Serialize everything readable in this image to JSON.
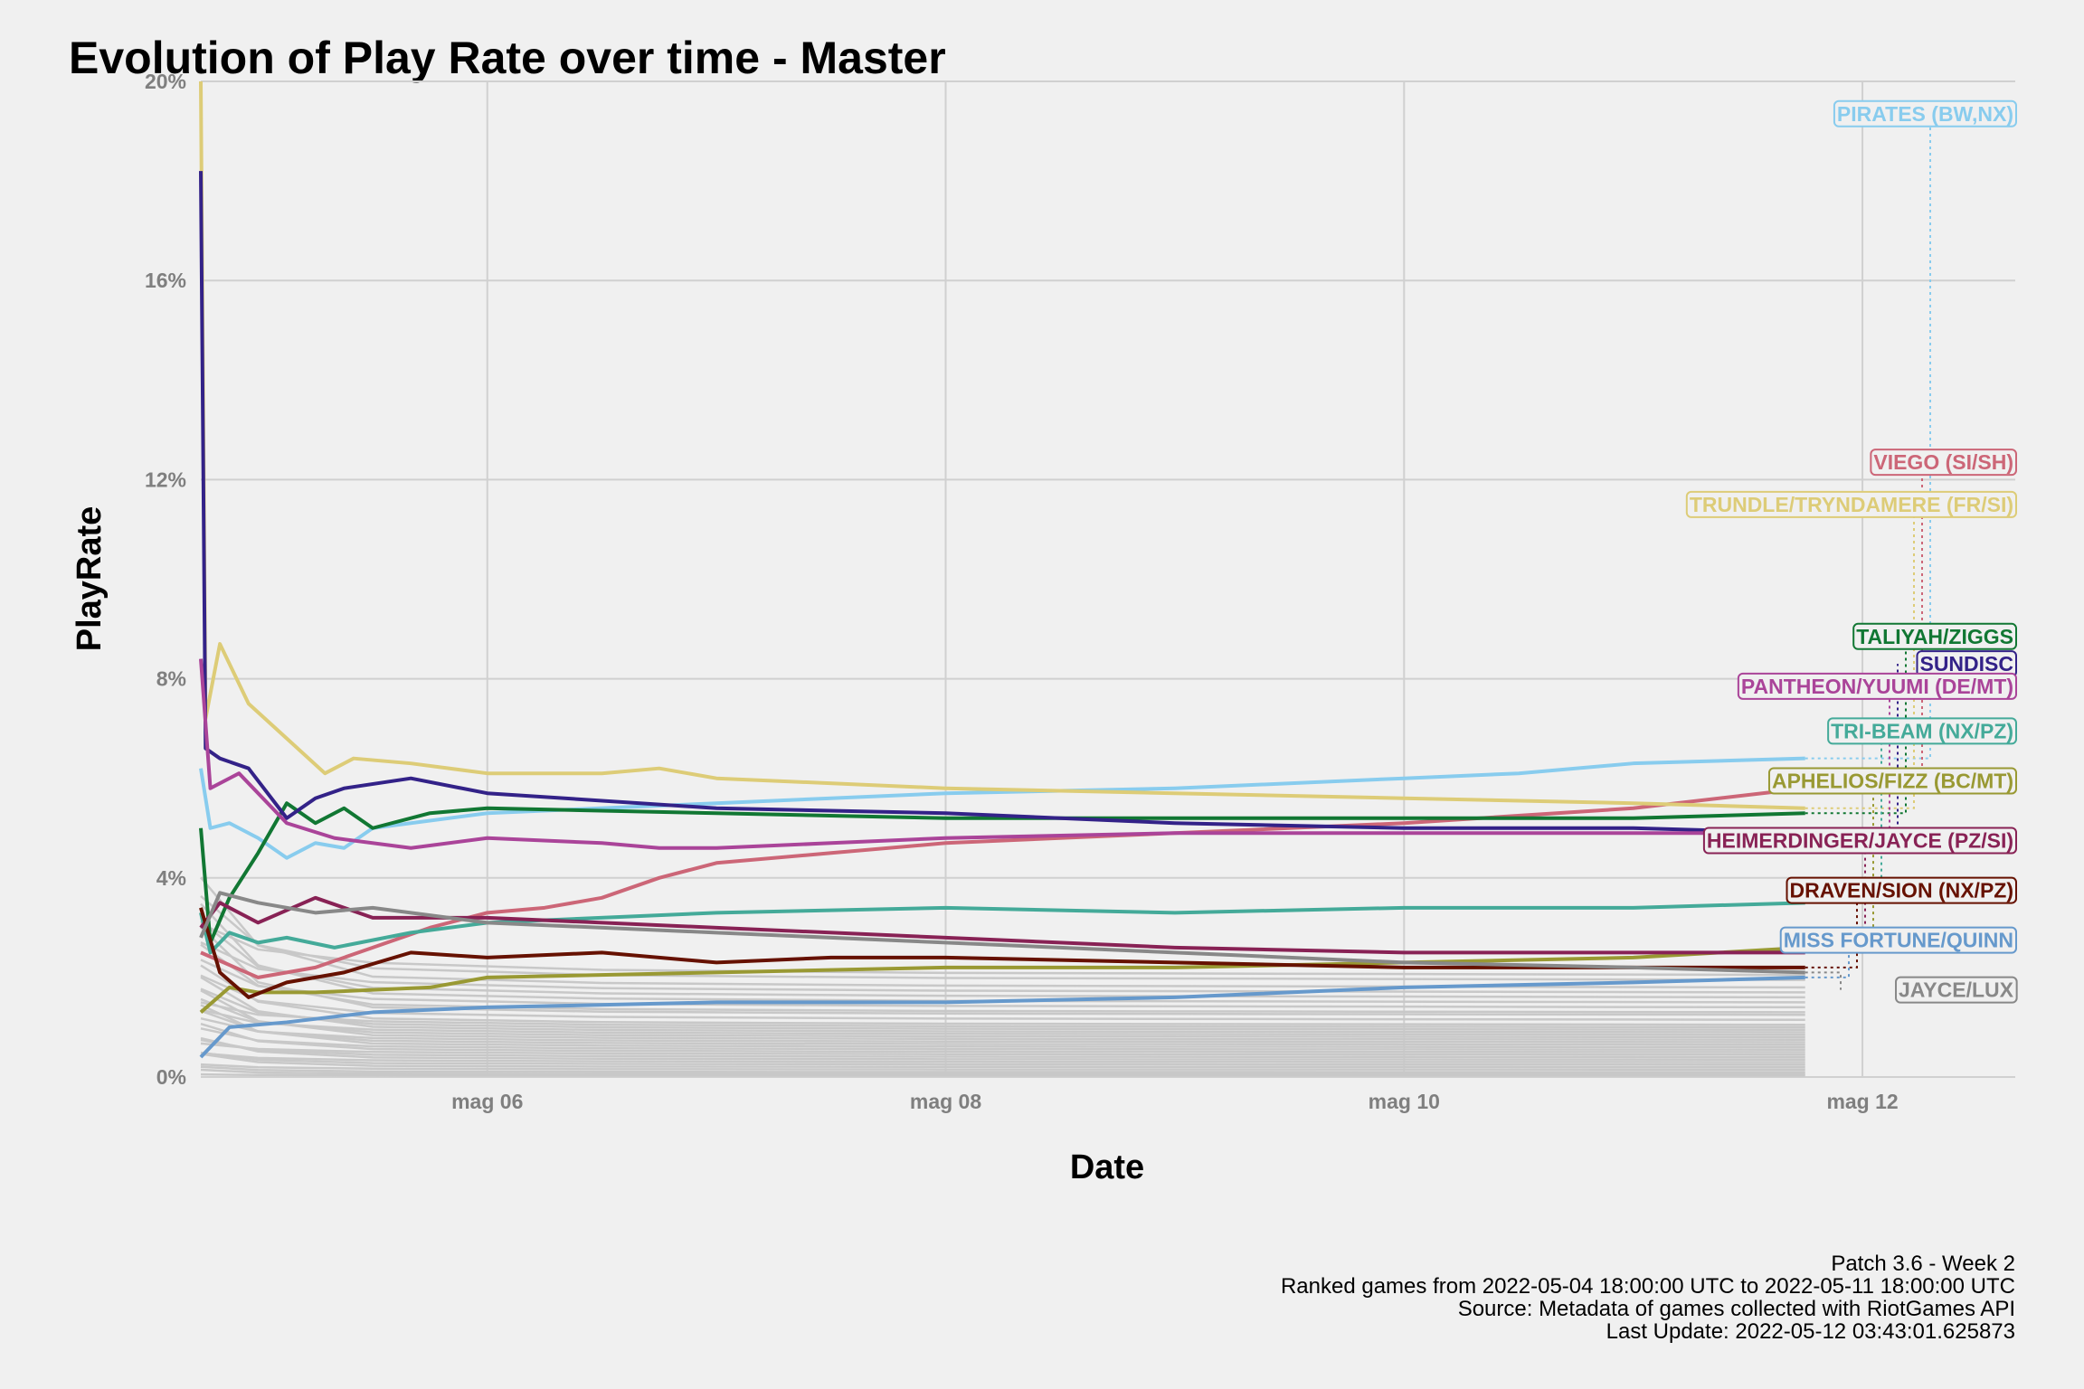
{
  "chart_data": {
    "type": "line",
    "title": "Evolution of Play Rate over time - Master",
    "xlabel": "Date",
    "ylabel": "PlayRate",
    "x_range": [
      "2022-05-04 18:00",
      "2022-05-12 16:00"
    ],
    "ylim": [
      0,
      20
    ],
    "x_ticks": [
      {
        "date": "2022-05-06",
        "label": "mag 06"
      },
      {
        "date": "2022-05-08",
        "label": "mag 08"
      },
      {
        "date": "2022-05-10",
        "label": "mag 10"
      },
      {
        "date": "2022-05-12",
        "label": "mag 12"
      }
    ],
    "y_ticks": [
      {
        "value": 0,
        "label": "0%"
      },
      {
        "value": 4,
        "label": "4%"
      },
      {
        "value": 8,
        "label": "8%"
      },
      {
        "value": 12,
        "label": "12%"
      },
      {
        "value": 16,
        "label": "16%"
      },
      {
        "value": 20,
        "label": "20%"
      }
    ],
    "grid": true,
    "legend": "none",
    "series": [
      {
        "name": "PIRATES (BW,NX)",
        "color": "#88ccee",
        "label_value": 19.35,
        "points": [
          [
            "2022-05-04 18:00",
            6.2
          ],
          [
            "2022-05-04 19:00",
            5.0
          ],
          [
            "2022-05-04 21:00",
            5.1
          ],
          [
            "2022-05-05 00:00",
            4.8
          ],
          [
            "2022-05-05 03:00",
            4.4
          ],
          [
            "2022-05-05 06:00",
            4.7
          ],
          [
            "2022-05-05 09:00",
            4.6
          ],
          [
            "2022-05-05 12:00",
            5.0
          ],
          [
            "2022-05-06 00:00",
            5.3
          ],
          [
            "2022-05-07 00:00",
            5.5
          ],
          [
            "2022-05-07 12:00",
            5.6
          ],
          [
            "2022-05-08 00:00",
            5.7
          ],
          [
            "2022-05-09 00:00",
            5.8
          ],
          [
            "2022-05-10 00:00",
            6.0
          ],
          [
            "2022-05-10 12:00",
            6.1
          ],
          [
            "2022-05-11 00:00",
            6.3
          ],
          [
            "2022-05-11 18:00",
            6.4
          ]
        ]
      },
      {
        "name": "VIEGO (SI/SH)",
        "color": "#cc6677",
        "label_value": 12.35,
        "points": [
          [
            "2022-05-04 18:00",
            2.5
          ],
          [
            "2022-05-05 00:00",
            2.0
          ],
          [
            "2022-05-05 06:00",
            2.2
          ],
          [
            "2022-05-05 12:00",
            2.6
          ],
          [
            "2022-05-05 18:00",
            3.0
          ],
          [
            "2022-05-06 00:00",
            3.3
          ],
          [
            "2022-05-06 06:00",
            3.4
          ],
          [
            "2022-05-06 12:00",
            3.6
          ],
          [
            "2022-05-06 18:00",
            4.0
          ],
          [
            "2022-05-07 00:00",
            4.3
          ],
          [
            "2022-05-07 12:00",
            4.5
          ],
          [
            "2022-05-08 00:00",
            4.7
          ],
          [
            "2022-05-09 00:00",
            4.9
          ],
          [
            "2022-05-10 00:00",
            5.1
          ],
          [
            "2022-05-11 00:00",
            5.4
          ],
          [
            "2022-05-11 18:00",
            5.8
          ]
        ]
      },
      {
        "name": "TRUNDLE/TRYNDAMERE (FR/SI)",
        "color": "#ddcc77",
        "label_value": 11.5,
        "points": [
          [
            "2022-05-04 18:00",
            20
          ],
          [
            "2022-05-04 18:30",
            7.2
          ],
          [
            "2022-05-04 20:00",
            8.7
          ],
          [
            "2022-05-04 23:00",
            7.5
          ],
          [
            "2022-05-05 03:00",
            6.8
          ],
          [
            "2022-05-05 07:00",
            6.1
          ],
          [
            "2022-05-05 10:00",
            6.4
          ],
          [
            "2022-05-05 16:00",
            6.3
          ],
          [
            "2022-05-06 00:00",
            6.1
          ],
          [
            "2022-05-06 12:00",
            6.1
          ],
          [
            "2022-05-06 18:00",
            6.2
          ],
          [
            "2022-05-07 00:00",
            6.0
          ],
          [
            "2022-05-08 00:00",
            5.8
          ],
          [
            "2022-05-09 00:00",
            5.7
          ],
          [
            "2022-05-10 00:00",
            5.6
          ],
          [
            "2022-05-11 00:00",
            5.5
          ],
          [
            "2022-05-11 18:00",
            5.4
          ]
        ]
      },
      {
        "name": "TALIYAH/ZIGGS",
        "color": "#117733",
        "label_value": 8.85,
        "points": [
          [
            "2022-05-04 18:00",
            5.0
          ],
          [
            "2022-05-04 19:00",
            2.7
          ],
          [
            "2022-05-04 21:00",
            3.6
          ],
          [
            "2022-05-05 00:00",
            4.5
          ],
          [
            "2022-05-05 03:00",
            5.5
          ],
          [
            "2022-05-05 06:00",
            5.1
          ],
          [
            "2022-05-05 09:00",
            5.4
          ],
          [
            "2022-05-05 12:00",
            5.0
          ],
          [
            "2022-05-05 18:00",
            5.3
          ],
          [
            "2022-05-06 00:00",
            5.4
          ],
          [
            "2022-05-07 00:00",
            5.3
          ],
          [
            "2022-05-08 00:00",
            5.2
          ],
          [
            "2022-05-09 00:00",
            5.2
          ],
          [
            "2022-05-10 00:00",
            5.2
          ],
          [
            "2022-05-11 00:00",
            5.2
          ],
          [
            "2022-05-11 18:00",
            5.3
          ]
        ]
      },
      {
        "name": "SUNDISC",
        "color": "#332288",
        "label_value": 8.3,
        "points": [
          [
            "2022-05-04 18:00",
            18.2
          ],
          [
            "2022-05-04 18:30",
            6.6
          ],
          [
            "2022-05-04 20:00",
            6.4
          ],
          [
            "2022-05-04 23:00",
            6.2
          ],
          [
            "2022-05-05 03:00",
            5.2
          ],
          [
            "2022-05-05 06:00",
            5.6
          ],
          [
            "2022-05-05 09:00",
            5.8
          ],
          [
            "2022-05-05 16:00",
            6.0
          ],
          [
            "2022-05-06 00:00",
            5.7
          ],
          [
            "2022-05-07 00:00",
            5.4
          ],
          [
            "2022-05-08 00:00",
            5.3
          ],
          [
            "2022-05-09 00:00",
            5.1
          ],
          [
            "2022-05-10 00:00",
            5.0
          ],
          [
            "2022-05-11 00:00",
            5.0
          ],
          [
            "2022-05-11 18:00",
            4.9
          ]
        ]
      },
      {
        "name": "PANTHEON/YUUMI (DE/MT)",
        "color": "#aa4499",
        "label_value": 7.85,
        "points": [
          [
            "2022-05-04 18:00",
            8.4
          ],
          [
            "2022-05-04 19:00",
            5.8
          ],
          [
            "2022-05-04 22:00",
            6.1
          ],
          [
            "2022-05-05 03:00",
            5.1
          ],
          [
            "2022-05-05 08:00",
            4.8
          ],
          [
            "2022-05-05 16:00",
            4.6
          ],
          [
            "2022-05-06 00:00",
            4.8
          ],
          [
            "2022-05-06 12:00",
            4.7
          ],
          [
            "2022-05-06 18:00",
            4.6
          ],
          [
            "2022-05-07 00:00",
            4.6
          ],
          [
            "2022-05-07 12:00",
            4.7
          ],
          [
            "2022-05-08 00:00",
            4.8
          ],
          [
            "2022-05-09 00:00",
            4.9
          ],
          [
            "2022-05-10 00:00",
            4.9
          ],
          [
            "2022-05-11 00:00",
            4.9
          ],
          [
            "2022-05-11 18:00",
            4.9
          ]
        ]
      },
      {
        "name": "TRI-BEAM (NX/PZ)",
        "color": "#44aa99",
        "label_value": 6.95,
        "points": [
          [
            "2022-05-04 18:00",
            3.3
          ],
          [
            "2022-05-04 19:00",
            2.5
          ],
          [
            "2022-05-04 21:00",
            2.9
          ],
          [
            "2022-05-05 00:00",
            2.7
          ],
          [
            "2022-05-05 03:00",
            2.8
          ],
          [
            "2022-05-05 08:00",
            2.6
          ],
          [
            "2022-05-05 16:00",
            2.9
          ],
          [
            "2022-05-06 00:00",
            3.1
          ],
          [
            "2022-05-07 00:00",
            3.3
          ],
          [
            "2022-05-08 00:00",
            3.4
          ],
          [
            "2022-05-09 00:00",
            3.3
          ],
          [
            "2022-05-10 00:00",
            3.4
          ],
          [
            "2022-05-11 00:00",
            3.4
          ],
          [
            "2022-05-11 18:00",
            3.5
          ]
        ]
      },
      {
        "name": "APHELIOS/FIZZ (BC/MT)",
        "color": "#999933",
        "label_value": 5.95,
        "points": [
          [
            "2022-05-04 18:00",
            1.3
          ],
          [
            "2022-05-04 21:00",
            1.8
          ],
          [
            "2022-05-05 00:00",
            1.7
          ],
          [
            "2022-05-05 06:00",
            1.7
          ],
          [
            "2022-05-05 18:00",
            1.8
          ],
          [
            "2022-05-06 00:00",
            2.0
          ],
          [
            "2022-05-07 00:00",
            2.1
          ],
          [
            "2022-05-08 00:00",
            2.2
          ],
          [
            "2022-05-09 00:00",
            2.2
          ],
          [
            "2022-05-10 00:00",
            2.3
          ],
          [
            "2022-05-11 00:00",
            2.4
          ],
          [
            "2022-05-11 18:00",
            2.6
          ]
        ]
      },
      {
        "name": "HEIMERDINGER/JAYCE (PZ/SI)",
        "color": "#882255",
        "label_value": 4.75,
        "points": [
          [
            "2022-05-04 18:00",
            3.0
          ],
          [
            "2022-05-04 20:00",
            3.5
          ],
          [
            "2022-05-05 00:00",
            3.1
          ],
          [
            "2022-05-05 06:00",
            3.6
          ],
          [
            "2022-05-05 12:00",
            3.2
          ],
          [
            "2022-05-06 00:00",
            3.2
          ],
          [
            "2022-05-07 00:00",
            3.0
          ],
          [
            "2022-05-08 00:00",
            2.8
          ],
          [
            "2022-05-09 00:00",
            2.6
          ],
          [
            "2022-05-10 00:00",
            2.5
          ],
          [
            "2022-05-11 00:00",
            2.5
          ],
          [
            "2022-05-11 18:00",
            2.5
          ]
        ]
      },
      {
        "name": "DRAVEN/SION (NX/PZ)",
        "color": "#661100",
        "label_value": 3.75,
        "points": [
          [
            "2022-05-04 18:00",
            3.4
          ],
          [
            "2022-05-04 20:00",
            2.1
          ],
          [
            "2022-05-04 23:00",
            1.6
          ],
          [
            "2022-05-05 03:00",
            1.9
          ],
          [
            "2022-05-05 09:00",
            2.1
          ],
          [
            "2022-05-05 16:00",
            2.5
          ],
          [
            "2022-05-06 00:00",
            2.4
          ],
          [
            "2022-05-06 12:00",
            2.5
          ],
          [
            "2022-05-07 00:00",
            2.3
          ],
          [
            "2022-05-07 12:00",
            2.4
          ],
          [
            "2022-05-08 00:00",
            2.4
          ],
          [
            "2022-05-09 00:00",
            2.3
          ],
          [
            "2022-05-10 00:00",
            2.2
          ],
          [
            "2022-05-11 00:00",
            2.2
          ],
          [
            "2022-05-11 18:00",
            2.2
          ]
        ]
      },
      {
        "name": "MISS FORTUNE/QUINN",
        "color": "#6699cc",
        "label_value": 2.75,
        "points": [
          [
            "2022-05-04 18:00",
            0.4
          ],
          [
            "2022-05-04 21:00",
            1.0
          ],
          [
            "2022-05-05 03:00",
            1.1
          ],
          [
            "2022-05-05 12:00",
            1.3
          ],
          [
            "2022-05-06 00:00",
            1.4
          ],
          [
            "2022-05-07 00:00",
            1.5
          ],
          [
            "2022-05-08 00:00",
            1.5
          ],
          [
            "2022-05-09 00:00",
            1.6
          ],
          [
            "2022-05-10 00:00",
            1.8
          ],
          [
            "2022-05-11 00:00",
            1.9
          ],
          [
            "2022-05-11 18:00",
            2.0
          ]
        ]
      },
      {
        "name": "JAYCE/LUX",
        "color": "#888888",
        "label_value": 1.75,
        "points": [
          [
            "2022-05-04 18:00",
            2.8
          ],
          [
            "2022-05-04 20:00",
            3.7
          ],
          [
            "2022-05-05 00:00",
            3.5
          ],
          [
            "2022-05-05 06:00",
            3.3
          ],
          [
            "2022-05-05 12:00",
            3.4
          ],
          [
            "2022-05-06 00:00",
            3.1
          ],
          [
            "2022-05-07 00:00",
            2.9
          ],
          [
            "2022-05-08 00:00",
            2.7
          ],
          [
            "2022-05-09 00:00",
            2.5
          ],
          [
            "2022-05-10 00:00",
            2.3
          ],
          [
            "2022-05-11 00:00",
            2.2
          ],
          [
            "2022-05-11 18:00",
            2.1
          ]
        ]
      }
    ],
    "background_series": {
      "color": "#c8c8c8",
      "final_values": [
        2.05,
        1.95,
        1.8,
        1.7,
        1.6,
        1.5,
        1.4,
        1.3,
        1.25,
        1.15,
        1.05,
        1.0,
        0.95,
        0.9,
        0.85,
        0.8,
        0.75,
        0.7,
        0.65,
        0.6,
        0.55,
        0.5,
        0.45,
        0.4,
        0.35,
        0.3,
        0.25,
        0.2,
        0.15,
        0.1,
        0.06,
        0.03
      ]
    }
  },
  "caption": {
    "line1": "Patch 3.6 - Week 2",
    "line2": "Ranked games from 2022-05-04 18:00:00 UTC to 2022-05-11 18:00:00 UTC",
    "line3": "Source: Metadata of games collected with RiotGames API",
    "line4": "Last Update: 2022-05-12 03:43:01.625873"
  }
}
